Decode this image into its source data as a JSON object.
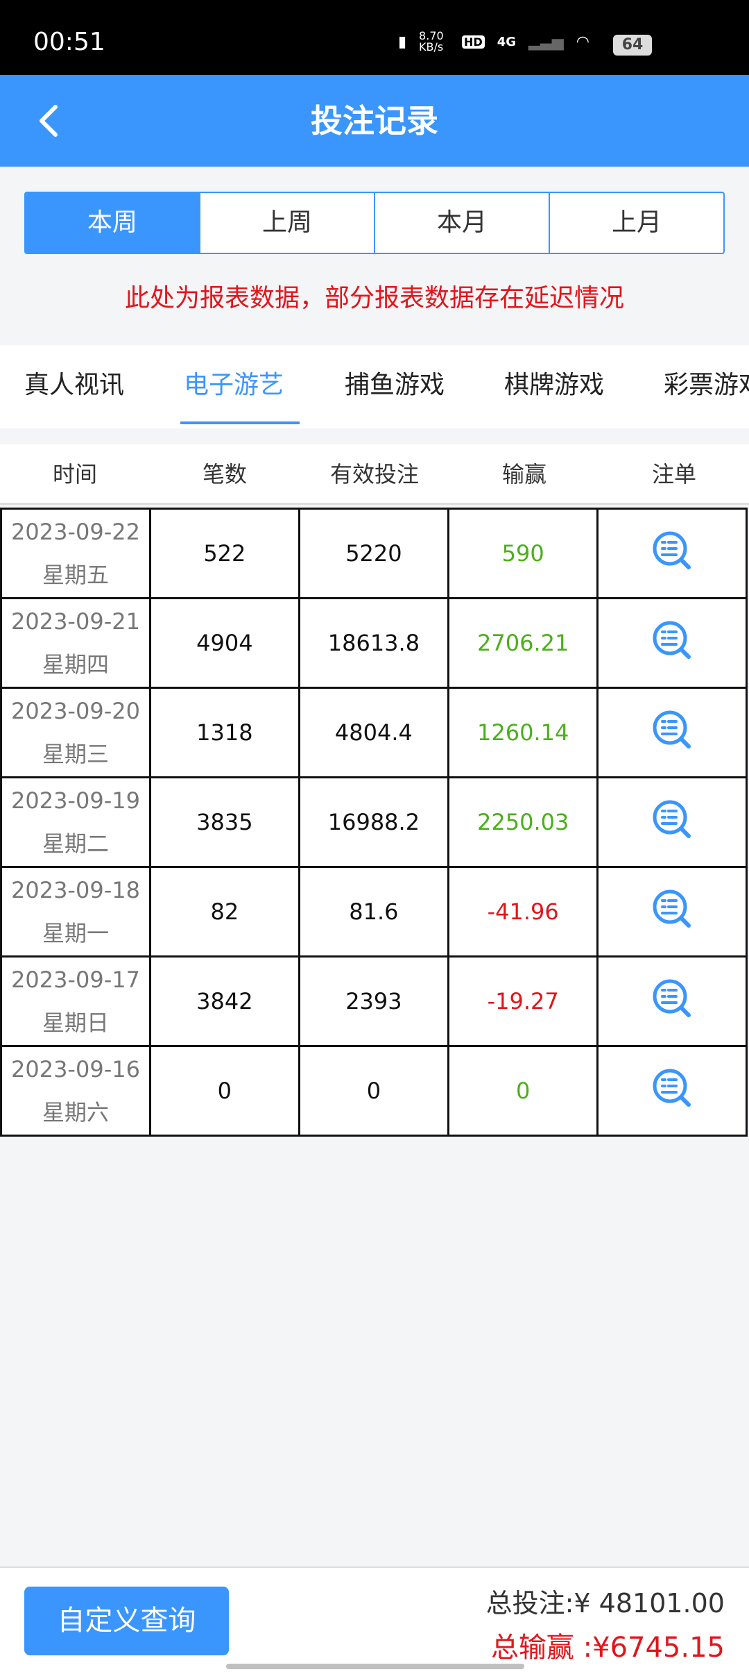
{
  "status_bar": {
    "time": "00:51",
    "net_speed": "8.70 KB/s",
    "hd": "HD",
    "network": "4G",
    "battery": "64"
  },
  "header": {
    "title": "投注记录"
  },
  "period_tabs": [
    {
      "label": "本周",
      "active": true
    },
    {
      "label": "上周"
    },
    {
      "label": "本月"
    },
    {
      "label": "上月"
    }
  ],
  "notice": "此处为报表数据，部分报表数据存在延迟情况",
  "category_tabs": [
    {
      "label": "真人视讯"
    },
    {
      "label": "电子游艺",
      "active": true
    },
    {
      "label": "捕鱼游戏"
    },
    {
      "label": "棋牌游戏"
    },
    {
      "label": "彩票游戏"
    }
  ],
  "table": {
    "columns": [
      "时间",
      "笔数",
      "有效投注",
      "输赢",
      "注单"
    ],
    "rows": [
      {
        "date": "2023-09-22",
        "weekday": "星期五",
        "count": "522",
        "valid_bet": "5220",
        "win_loss": "590",
        "sign": "pos"
      },
      {
        "date": "2023-09-21",
        "weekday": "星期四",
        "count": "4904",
        "valid_bet": "18613.8",
        "win_loss": "2706.21",
        "sign": "pos"
      },
      {
        "date": "2023-09-20",
        "weekday": "星期三",
        "count": "1318",
        "valid_bet": "4804.4",
        "win_loss": "1260.14",
        "sign": "pos"
      },
      {
        "date": "2023-09-19",
        "weekday": "星期二",
        "count": "3835",
        "valid_bet": "16988.2",
        "win_loss": "2250.03",
        "sign": "pos"
      },
      {
        "date": "2023-09-18",
        "weekday": "星期一",
        "count": "82",
        "valid_bet": "81.6",
        "win_loss": "-41.96",
        "sign": "neg"
      },
      {
        "date": "2023-09-17",
        "weekday": "星期日",
        "count": "3842",
        "valid_bet": "2393",
        "win_loss": "-19.27",
        "sign": "neg"
      },
      {
        "date": "2023-09-16",
        "weekday": "星期六",
        "count": "0",
        "valid_bet": "0",
        "win_loss": "0",
        "sign": "pos"
      }
    ]
  },
  "footer": {
    "custom_query": "自定义查询",
    "total_bet": "总投注:¥ 48101.00",
    "total_win": "总输赢 :¥6745.15"
  },
  "colors": {
    "accent": "#3a96fc",
    "positive": "#4caf1c",
    "negative": "#e0161b"
  }
}
